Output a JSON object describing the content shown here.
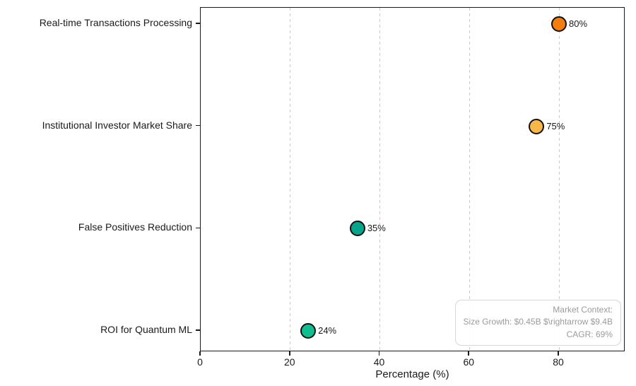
{
  "chart_data": {
    "type": "scatter",
    "orientation": "horizontal",
    "title": "",
    "xlabel": "Percentage (%)",
    "ylabel": "",
    "categories": [
      "Real-time Transactions Processing",
      "Institutional Investor Market Share",
      "False Positives Reduction",
      "ROI for Quantum ML"
    ],
    "values": [
      80,
      75,
      35,
      24
    ],
    "point_labels": [
      "80%",
      "75%",
      "35%",
      "24%"
    ],
    "point_colors": [
      "#F27E0E",
      "#F8B748",
      "#07A48C",
      "#10BE8F"
    ],
    "marker_edge_color": "#111111",
    "xlim": [
      0,
      95
    ],
    "x_ticks": [
      0,
      20,
      40,
      60,
      80
    ],
    "grid": "vertical-dashed",
    "legend": "none",
    "annotation": {
      "position": "bottom-right",
      "lines": [
        "Market Context:",
        "Size Growth: $0.45B $\\rightarrow $9.4B",
        "CAGR: 69%"
      ]
    }
  }
}
